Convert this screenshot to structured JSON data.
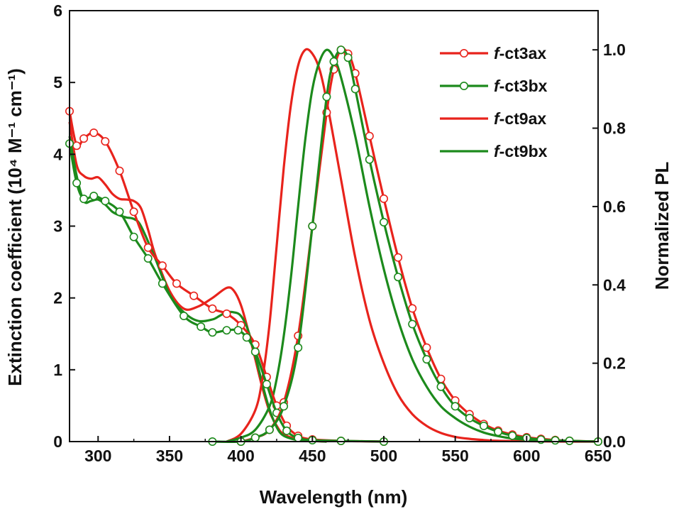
{
  "chart_data": {
    "type": "line",
    "xlabel": "Wavelength (nm)",
    "ylabel_left": "Extinction coefficient (10⁴ M⁻¹ cm⁻¹)",
    "ylabel_right": "Normalized PL",
    "xlim": [
      280,
      650
    ],
    "ylim_left": [
      0,
      6
    ],
    "ylim_right": [
      0,
      1.1
    ],
    "x_ticks": [
      300,
      350,
      400,
      450,
      500,
      550,
      600,
      650
    ],
    "y_left_ticks": [
      0,
      1,
      2,
      3,
      4,
      5,
      6
    ],
    "y_right_ticks": [
      "0.0",
      "0.2",
      "0.4",
      "0.6",
      "0.8",
      "1.0"
    ],
    "legend": [
      {
        "prefix": "f",
        "name": "-ct3ax",
        "color": "#e8231c",
        "marker": "open-circle"
      },
      {
        "prefix": "f",
        "name": "-ct3bx",
        "color": "#1c8a1c",
        "marker": "open-circle"
      },
      {
        "prefix": "f",
        "name": "-ct9ax",
        "color": "#e8231c",
        "marker": "none"
      },
      {
        "prefix": "f",
        "name": "-ct9bx",
        "color": "#1c8a1c",
        "marker": "none"
      }
    ],
    "series": [
      {
        "name": "f-ct3ax absorption",
        "axis": "left",
        "color": "#e8231c",
        "markers": true,
        "x": [
          280,
          285,
          290,
          297,
          305,
          315,
          325,
          335,
          345,
          355,
          367,
          380,
          390,
          400,
          410,
          418,
          425,
          432,
          440,
          450,
          470,
          500
        ],
        "y": [
          4.6,
          4.12,
          4.22,
          4.3,
          4.18,
          3.77,
          3.2,
          2.7,
          2.45,
          2.2,
          2.03,
          1.85,
          1.78,
          1.62,
          1.35,
          0.9,
          0.5,
          0.22,
          0.08,
          0.03,
          0.01,
          0.0
        ]
      },
      {
        "name": "f-ct3bx absorption",
        "axis": "left",
        "color": "#1c8a1c",
        "markers": true,
        "x": [
          280,
          285,
          290,
          297,
          305,
          315,
          325,
          335,
          345,
          360,
          372,
          380,
          390,
          398,
          404,
          410,
          418,
          425,
          432,
          440,
          450,
          470,
          500
        ],
        "y": [
          4.15,
          3.6,
          3.38,
          3.42,
          3.35,
          3.2,
          2.85,
          2.55,
          2.2,
          1.75,
          1.6,
          1.52,
          1.55,
          1.55,
          1.45,
          1.25,
          0.8,
          0.4,
          0.15,
          0.05,
          0.02,
          0.01,
          0.0
        ]
      },
      {
        "name": "f-ct9ax absorption",
        "axis": "left",
        "color": "#e8231c",
        "markers": false,
        "x": [
          280,
          285,
          290,
          295,
          300,
          305,
          310,
          315,
          320,
          325,
          330,
          335,
          340,
          350,
          360,
          370,
          380,
          390,
          395,
          400,
          405,
          410,
          415,
          420,
          425,
          430,
          440,
          450,
          460
        ],
        "y": [
          4.45,
          3.85,
          3.7,
          3.66,
          3.68,
          3.58,
          3.45,
          3.38,
          3.37,
          3.35,
          3.25,
          2.95,
          2.6,
          2.1,
          1.85,
          1.88,
          2.0,
          2.14,
          2.1,
          1.9,
          1.55,
          1.15,
          0.75,
          0.42,
          0.22,
          0.1,
          0.03,
          0.01,
          0.0
        ]
      },
      {
        "name": "f-ct9bx absorption",
        "axis": "left",
        "color": "#1c8a1c",
        "markers": false,
        "x": [
          280,
          285,
          290,
          295,
          300,
          305,
          310,
          315,
          320,
          325,
          330,
          340,
          350,
          360,
          370,
          380,
          385,
          390,
          395,
          400,
          405,
          410,
          415,
          420,
          425,
          430,
          440,
          450,
          460
        ],
        "y": [
          4.25,
          3.7,
          3.35,
          3.35,
          3.37,
          3.3,
          3.2,
          3.15,
          3.12,
          3.1,
          3.0,
          2.55,
          2.05,
          1.8,
          1.68,
          1.7,
          1.75,
          1.8,
          1.8,
          1.75,
          1.55,
          1.2,
          0.8,
          0.45,
          0.2,
          0.08,
          0.02,
          0.01,
          0.0
        ]
      },
      {
        "name": "f-ct3ax PL",
        "axis": "right",
        "color": "#e8231c",
        "markers": true,
        "x": [
          400,
          410,
          420,
          430,
          440,
          450,
          460,
          465,
          470,
          475,
          480,
          490,
          500,
          510,
          520,
          530,
          540,
          550,
          560,
          570,
          580,
          590,
          600,
          610,
          620,
          630,
          650
        ],
        "y": [
          0.0,
          0.01,
          0.03,
          0.1,
          0.27,
          0.55,
          0.84,
          0.95,
          1.0,
          0.99,
          0.94,
          0.78,
          0.62,
          0.47,
          0.34,
          0.24,
          0.16,
          0.105,
          0.07,
          0.045,
          0.028,
          0.018,
          0.011,
          0.007,
          0.004,
          0.002,
          0.0
        ]
      },
      {
        "name": "f-ct3bx PL",
        "axis": "right",
        "color": "#1c8a1c",
        "markers": true,
        "x": [
          380,
          400,
          410,
          420,
          430,
          440,
          450,
          460,
          465,
          470,
          475,
          480,
          490,
          500,
          510,
          520,
          530,
          540,
          550,
          560,
          570,
          580,
          590,
          600,
          610,
          620,
          630,
          650
        ],
        "y": [
          0.0,
          0.0,
          0.01,
          0.03,
          0.09,
          0.24,
          0.55,
          0.88,
          0.97,
          1.0,
          0.98,
          0.9,
          0.72,
          0.56,
          0.42,
          0.3,
          0.21,
          0.14,
          0.09,
          0.06,
          0.04,
          0.025,
          0.015,
          0.009,
          0.005,
          0.003,
          0.002,
          0.0
        ]
      },
      {
        "name": "f-ct9ax PL",
        "axis": "right",
        "color": "#e8231c",
        "markers": false,
        "x": [
          390,
          400,
          410,
          415,
          420,
          425,
          430,
          435,
          440,
          445,
          450,
          455,
          460,
          470,
          480,
          490,
          500,
          510,
          520,
          530,
          540,
          550,
          560,
          570,
          580,
          600,
          630,
          650
        ],
        "y": [
          0.0,
          0.02,
          0.08,
          0.16,
          0.3,
          0.5,
          0.7,
          0.86,
          0.96,
          1.0,
          0.99,
          0.95,
          0.87,
          0.67,
          0.47,
          0.31,
          0.2,
          0.12,
          0.07,
          0.04,
          0.022,
          0.012,
          0.007,
          0.004,
          0.002,
          0.001,
          0.0,
          0.0
        ]
      },
      {
        "name": "f-ct9bx PL",
        "axis": "right",
        "color": "#1c8a1c",
        "markers": false,
        "x": [
          390,
          400,
          410,
          420,
          425,
          430,
          435,
          440,
          445,
          450,
          455,
          460,
          465,
          470,
          480,
          490,
          500,
          510,
          520,
          530,
          540,
          550,
          560,
          570,
          580,
          590,
          600,
          620,
          650
        ],
        "y": [
          0.0,
          0.01,
          0.03,
          0.09,
          0.16,
          0.27,
          0.42,
          0.6,
          0.77,
          0.9,
          0.97,
          1.0,
          0.98,
          0.93,
          0.78,
          0.6,
          0.44,
          0.31,
          0.21,
          0.14,
          0.09,
          0.06,
          0.038,
          0.023,
          0.014,
          0.008,
          0.005,
          0.002,
          0.0
        ]
      }
    ]
  }
}
